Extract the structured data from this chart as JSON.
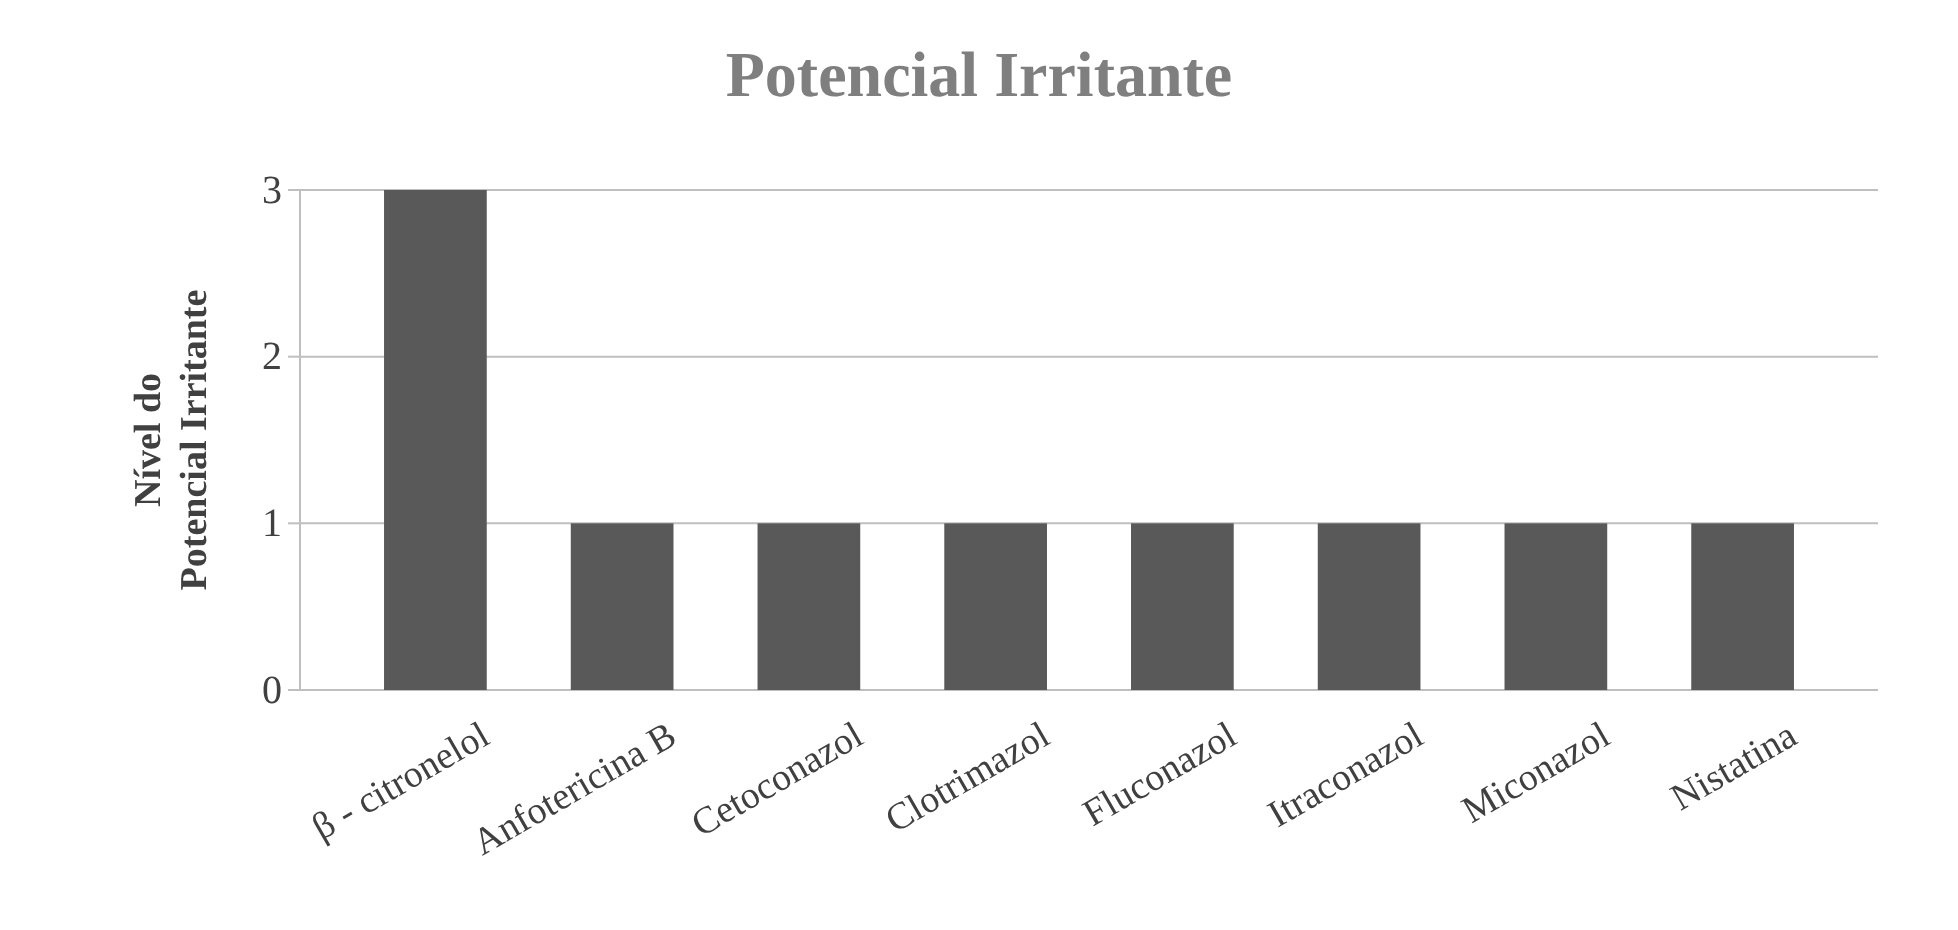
{
  "chart_data": {
    "type": "bar",
    "title": "Potencial Irritante",
    "ylabel": "Nível do Potencial Irritante",
    "categories": [
      "β - citronelol",
      "Anfotericina B",
      "Cetoconazol",
      "Clotrimazol",
      "Fluconazol",
      "Itraconazol",
      "Miconazol",
      "Nistatina"
    ],
    "values": [
      3,
      1,
      1,
      1,
      1,
      1,
      1,
      1
    ],
    "color": "#595959",
    "ylim": [
      0,
      3
    ],
    "yticks": [
      0,
      1,
      2,
      3
    ],
    "grid": "y"
  }
}
